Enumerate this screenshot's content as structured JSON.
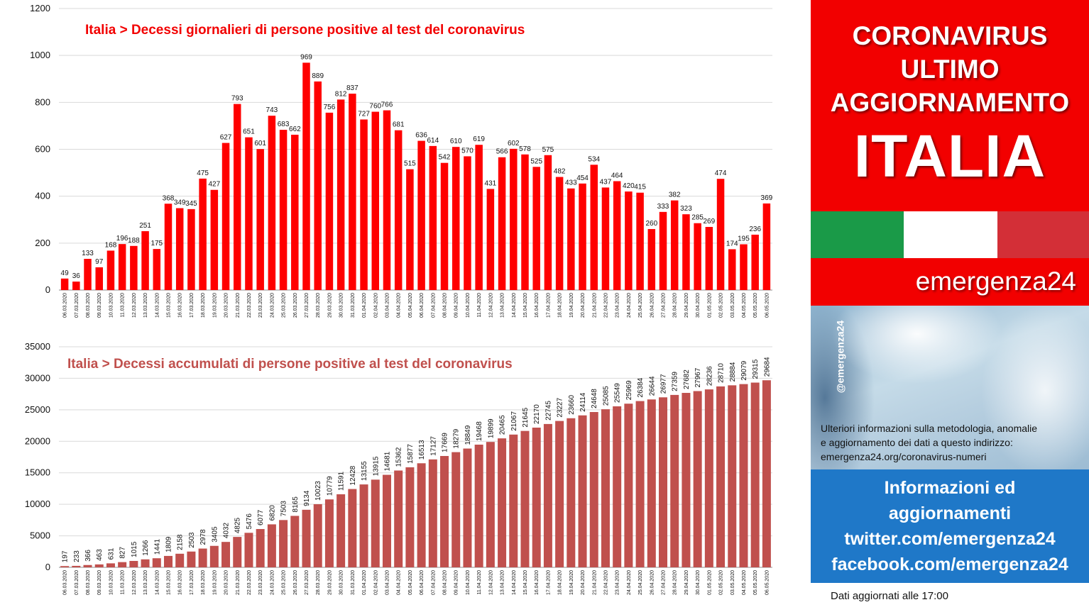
{
  "chart_data": [
    {
      "type": "bar",
      "title": "Italia > Decessi giornalieri di persone positive al test del coronavirus",
      "color": "#ff0000",
      "ylim": [
        0,
        1200
      ],
      "yticks": [
        0,
        200,
        400,
        600,
        800,
        1000,
        1200
      ],
      "grid": true,
      "categories": [
        "06.03.2020",
        "07.03.2020",
        "08.03.2020",
        "09.03.2020",
        "10.03.2020",
        "11.03.2020",
        "12.03.2020",
        "13.03.2020",
        "14.03.2020",
        "15.03.2020",
        "16.03.2020",
        "17.03.2020",
        "18.03.2020",
        "19.03.2020",
        "20.03.2020",
        "21.03.2020",
        "22.03.2020",
        "23.03.2020",
        "24.03.2020",
        "25.03.2020",
        "26.03.2020",
        "27.03.2020",
        "28.03.2020",
        "29.03.2020",
        "30.03.2020",
        "31.03.2020",
        "01.04.2020",
        "02.04.2020",
        "03.04.2020",
        "04.04.2020",
        "05.04.2020",
        "06.04.2020",
        "07.04.2020",
        "08.04.2020",
        "09.04.2020",
        "10.04.2020",
        "11.04.2020",
        "12.04.2020",
        "13.04.2020",
        "14.04.2020",
        "15.04.2020",
        "16.04.2020",
        "17.04.2020",
        "18.04.2020",
        "19.04.2020",
        "20.04.2020",
        "21.04.2020",
        "22.04.2020",
        "23.04.2020",
        "24.04.2020",
        "25.04.2020",
        "26.04.2020",
        "27.04.2020",
        "28.04.2020",
        "29.04.2020",
        "30.04.2020",
        "01.05.2020",
        "02.05.2020",
        "03.05.2020",
        "04.05.2020",
        "05.05.2020",
        "06.05.2020"
      ],
      "values": [
        49,
        36,
        133,
        97,
        168,
        196,
        188,
        251,
        175,
        368,
        349,
        345,
        475,
        427,
        627,
        793,
        651,
        601,
        743,
        683,
        662,
        969,
        889,
        756,
        812,
        837,
        727,
        760,
        766,
        681,
        515,
        636,
        614,
        542,
        610,
        570,
        619,
        431,
        566,
        602,
        578,
        525,
        575,
        482,
        433,
        454,
        534,
        437,
        464,
        420,
        415,
        260,
        333,
        382,
        323,
        285,
        269,
        474,
        174,
        195,
        236,
        369
      ]
    },
    {
      "type": "bar",
      "title": "Italia > Decessi accumulati di persone positive al test del coronavirus",
      "color": "#c0504d",
      "ylim": [
        0,
        35000
      ],
      "yticks": [
        0,
        5000,
        10000,
        15000,
        20000,
        25000,
        30000,
        35000
      ],
      "grid": true,
      "categories": [
        "06.03.2020",
        "07.03.2020",
        "08.03.2020",
        "09.03.2020",
        "10.03.2020",
        "11.03.2020",
        "12.03.2020",
        "13.03.2020",
        "14.03.2020",
        "15.03.2020",
        "16.03.2020",
        "17.03.2020",
        "18.03.2020",
        "19.03.2020",
        "20.03.2020",
        "21.03.2020",
        "22.03.2020",
        "23.03.2020",
        "24.03.2020",
        "25.03.2020",
        "26.03.2020",
        "27.03.2020",
        "28.03.2020",
        "29.03.2020",
        "30.03.2020",
        "31.03.2020",
        "01.04.2020",
        "02.04.2020",
        "03.04.2020",
        "04.04.2020",
        "05.04.2020",
        "06.04.2020",
        "07.04.2020",
        "08.04.2020",
        "09.04.2020",
        "10.04.2020",
        "11.04.2020",
        "12.04.2020",
        "13.04.2020",
        "14.04.2020",
        "15.04.2020",
        "16.04.2020",
        "17.04.2020",
        "18.04.2020",
        "19.04.2020",
        "20.04.2020",
        "21.04.2020",
        "22.04.2020",
        "23.04.2020",
        "24.04.2020",
        "25.04.2020",
        "26.04.2020",
        "27.04.2020",
        "28.04.2020",
        "29.04.2020",
        "30.04.2020",
        "01.05.2020",
        "02.05.2020",
        "03.05.2020",
        "04.05.2020",
        "05.05.2020",
        "06.05.2020"
      ],
      "values": [
        197,
        233,
        366,
        463,
        631,
        827,
        1015,
        1266,
        1441,
        1809,
        2158,
        2503,
        2978,
        3405,
        4032,
        4825,
        5476,
        6077,
        6820,
        7503,
        8165,
        9134,
        10023,
        10779,
        11591,
        12428,
        13155,
        13915,
        14681,
        15362,
        15877,
        16513,
        17127,
        17669,
        18279,
        18849,
        19468,
        19899,
        20465,
        21067,
        21645,
        22170,
        22745,
        23227,
        23660,
        24114,
        24648,
        25085,
        25549,
        25969,
        26384,
        26644,
        26977,
        27359,
        27682,
        27967,
        28236,
        28710,
        28884,
        29079,
        29315,
        29684
      ]
    }
  ],
  "panel": {
    "headline_1": "CORONAVIRUS",
    "headline_2": "ULTIMO",
    "headline_3": "AGGIORNAMENTO",
    "headline_4": "ITALIA",
    "flag_colors": [
      "#1a9a48",
      "#ffffff",
      "#d32f37"
    ],
    "brand": "emergenza24",
    "handle": "@emergenza24",
    "info_line_1": "Ulteriori informazioni sulla metodologia, anomalie",
    "info_line_2": "e aggiornamento dei dati a questo indirizzo:",
    "info_line_3": "emergenza24.org/coronavirus-numeri",
    "social_line_1": "Informazioni ed",
    "social_line_2": "aggiornamenti",
    "social_line_3": "twitter.com/emergenza24",
    "social_line_4": "facebook.com/emergenza24",
    "updated": "Dati aggiornati alle 17:00"
  }
}
